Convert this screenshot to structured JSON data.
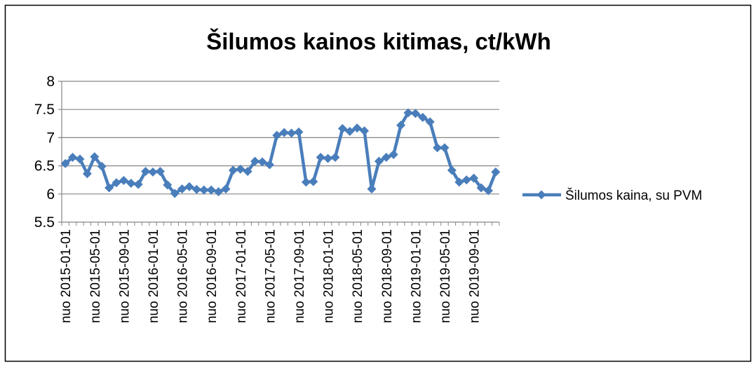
{
  "chart_data": {
    "type": "line",
    "title": "Šilumos kainos kitimas, ct/kWh",
    "categories": [
      "nuo 2015-01-01",
      null,
      null,
      null,
      "nuo 2015-05-01",
      null,
      null,
      null,
      "nuo 2015-09-01",
      null,
      null,
      null,
      "nuo 2016-01-01",
      null,
      null,
      null,
      "nuo 2016-05-01",
      null,
      null,
      null,
      "nuo 2016-09-01",
      null,
      null,
      null,
      "nuo 2017-01-01",
      null,
      null,
      null,
      "nuo 2017-05-01",
      null,
      null,
      null,
      "nuo 2017-09-01",
      null,
      null,
      null,
      "nuo 2018-01-01",
      null,
      null,
      null,
      "nuo 2018-05-01",
      null,
      null,
      null,
      "nuo 2018-09-01",
      null,
      null,
      null,
      "nuo 2019-01-01",
      null,
      null,
      null,
      "nuo 2019-05-01",
      null,
      null,
      null,
      "nuo 2019-09-01",
      null,
      null,
      null
    ],
    "series": [
      {
        "name": "Šilumos kaina, su PVM",
        "color": "#4a7ebb",
        "values": [
          6.54,
          6.65,
          6.62,
          6.36,
          6.66,
          6.49,
          6.11,
          6.2,
          6.24,
          6.19,
          6.17,
          6.4,
          6.39,
          6.4,
          6.16,
          6.01,
          6.09,
          6.13,
          6.08,
          6.07,
          6.07,
          6.04,
          6.09,
          6.42,
          6.44,
          6.4,
          6.58,
          6.57,
          6.52,
          7.04,
          7.09,
          7.08,
          7.1,
          6.21,
          6.22,
          6.65,
          6.63,
          6.65,
          7.16,
          7.11,
          7.17,
          7.12,
          6.09,
          6.58,
          6.65,
          6.7,
          7.22,
          7.44,
          7.43,
          7.36,
          7.28,
          6.82,
          6.82,
          6.42,
          6.21,
          6.25,
          6.28,
          6.11,
          6.06,
          6.39
        ]
      }
    ],
    "ylim": [
      5.5,
      8
    ],
    "yticks": [
      5.5,
      6,
      6.5,
      7,
      7.5,
      8
    ],
    "grid": true,
    "legend": "right"
  }
}
